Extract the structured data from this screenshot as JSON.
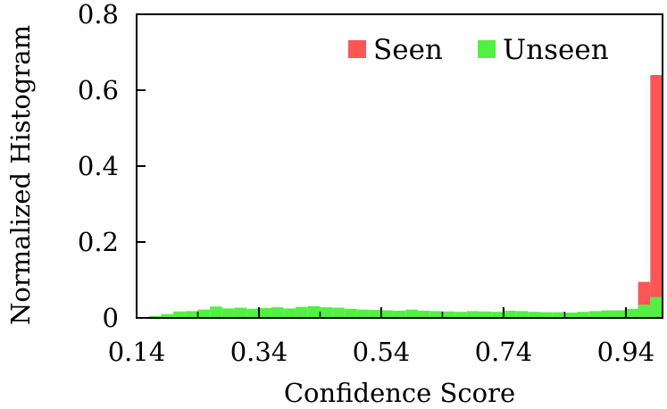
{
  "chart_data": {
    "type": "bar",
    "title": "",
    "xlabel": "Confidence Score",
    "ylabel": "Normalized Histogram",
    "xlim": [
      0.14,
      1.0
    ],
    "ylim": [
      0,
      0.8
    ],
    "xticks": [
      0.14,
      0.34,
      0.54,
      0.74,
      0.94
    ],
    "xtick_labels": [
      "0.14",
      "0.34",
      "0.54",
      "0.74",
      "0.94"
    ],
    "yticks": [
      0,
      0.2,
      0.4,
      0.6,
      0.8
    ],
    "ytick_labels": [
      "0",
      "0.2",
      "0.4",
      "0.6",
      "0.8"
    ],
    "legend_position": "top-right",
    "bin_width": 0.02,
    "bins_start": [
      0.14,
      0.16,
      0.18,
      0.2,
      0.22,
      0.24,
      0.26,
      0.28,
      0.3,
      0.32,
      0.34,
      0.36,
      0.38,
      0.4,
      0.42,
      0.44,
      0.46,
      0.48,
      0.5,
      0.52,
      0.54,
      0.56,
      0.58,
      0.6,
      0.62,
      0.64,
      0.66,
      0.68,
      0.7,
      0.72,
      0.74,
      0.76,
      0.78,
      0.8,
      0.82,
      0.84,
      0.86,
      0.88,
      0.9,
      0.92,
      0.94,
      0.96,
      0.98
    ],
    "series": [
      {
        "name": "Seen",
        "color": "#ff5555",
        "values": [
          0,
          0,
          0.001,
          0.001,
          0.002,
          0.002,
          0.002,
          0.002,
          0.002,
          0.002,
          0.002,
          0.002,
          0.002,
          0.002,
          0.002,
          0.002,
          0.002,
          0.002,
          0.002,
          0.002,
          0.002,
          0.002,
          0.002,
          0.002,
          0.002,
          0.002,
          0.002,
          0.002,
          0.002,
          0.002,
          0.002,
          0.002,
          0.002,
          0.002,
          0.003,
          0.003,
          0.004,
          0.005,
          0.007,
          0.01,
          0.02,
          0.095,
          0.64
        ]
      },
      {
        "name": "Unseen",
        "color": "#55ee44",
        "values": [
          0.002,
          0.005,
          0.01,
          0.017,
          0.018,
          0.022,
          0.03,
          0.025,
          0.027,
          0.024,
          0.026,
          0.028,
          0.025,
          0.029,
          0.031,
          0.028,
          0.027,
          0.024,
          0.022,
          0.021,
          0.02,
          0.019,
          0.022,
          0.019,
          0.018,
          0.017,
          0.016,
          0.018,
          0.017,
          0.016,
          0.019,
          0.018,
          0.016,
          0.015,
          0.015,
          0.014,
          0.016,
          0.018,
          0.02,
          0.02,
          0.024,
          0.035,
          0.055
        ]
      }
    ]
  }
}
